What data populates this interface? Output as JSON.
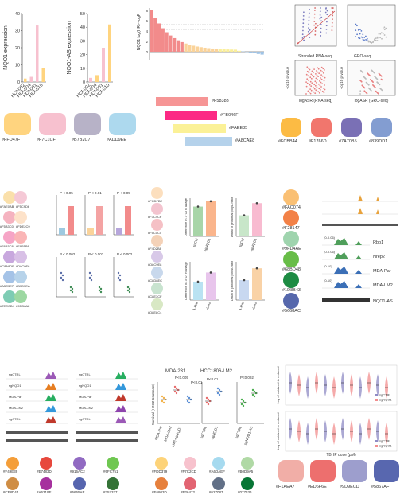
{
  "row1": {
    "chart_nqo1": {
      "type": "bar",
      "ylabel": "NQO1 expression",
      "categories": [
        "HCI-002",
        "HCI-004",
        "HCI-001",
        "HCI-010"
      ],
      "values": [
        2,
        3,
        33,
        8
      ],
      "ylim": [
        0,
        40
      ],
      "ticks": [
        "0",
        "10",
        "20",
        "30",
        "40"
      ],
      "colors": [
        "#FFD47F",
        "#F7C1CF",
        "#F7C1CF",
        "#FFD47F"
      ]
    },
    "chart_nqo1as": {
      "type": "bar",
      "ylabel": "NQO1-AS expression",
      "categories": [
        "HCI-002",
        "HCI-004",
        "HCI-001",
        "HCI-010"
      ],
      "values": [
        3,
        5,
        25,
        42
      ],
      "ylim": [
        0,
        50
      ],
      "ticks": [
        "0",
        "10",
        "20",
        "30",
        "40",
        "50"
      ],
      "colors": [
        "#F7C1CF",
        "#FFD47F",
        "#F7C1CF",
        "#FFD47F"
      ]
    },
    "chart_waterfall": {
      "type": "bar",
      "ylabel": "NQO1 log(HR)·-logP",
      "ticks": [
        "0",
        "2",
        "4",
        "6",
        "8"
      ]
    },
    "swatches_left": [
      {
        "hex": "#FFD47F",
        "label": "#FFD47F"
      },
      {
        "hex": "#F7C1CF",
        "label": "#F7C1CF"
      },
      {
        "hex": "#B7B2C7",
        "label": "#B7B2C7"
      },
      {
        "hex": "#ADD9EE",
        "label": "#ADD9EE"
      }
    ],
    "stripes": [
      {
        "hex": "#F58383",
        "label": "#F58383"
      },
      {
        "hex": "#FB046F",
        "label": "#FB046F"
      },
      {
        "hex": "#FAEE85",
        "label": "#FAEE85"
      },
      {
        "hex": "#A8CAE8",
        "label": "#A8CAE8"
      }
    ],
    "scatter": {
      "stranded_label": "Stranded RNA-seq",
      "gro_label": "GRO-seq",
      "xlabel_left": "logASR (RNA-seq)",
      "xlabel_right": "logASR (GRO-seq)",
      "ylabel": "-log10 p-value"
    },
    "swatches_right": [
      {
        "hex": "#FCBB44",
        "label": "#FCBB44"
      },
      {
        "hex": "#F1766D",
        "label": "#F1766D"
      },
      {
        "hex": "#7A70B5",
        "label": "#7A70B5"
      },
      {
        "hex": "#839DD1",
        "label": "#839DD1"
      }
    ]
  },
  "row2": {
    "left_pairs": [
      {
        "a": "#FAE0AB",
        "b": "#F5C9D6",
        "la": "#FAE0AB",
        "lb": "#F5C9D6"
      },
      {
        "a": "#F5B3C0",
        "b": "#FDE2C9",
        "la": "#F5B3C0",
        "lb": "#FDE2C9"
      },
      {
        "a": "#F6A5C6",
        "b": "#FAB5B6",
        "la": "#F6A5C6",
        "lb": "#FAB5B6"
      },
      {
        "a": "#C8A8DE",
        "b": "#D8C0E6",
        "la": "#C8A8DE",
        "lb": "#D8C0E6"
      },
      {
        "a": "#A5C3E7",
        "b": "#B7D3EA",
        "la": "#A5C3E7",
        "lb": "#B7D3EA"
      },
      {
        "a": "#7ECCB4",
        "b": "#9DD8A2",
        "la": "#7ECCB4",
        "lb": "#9DD8A2"
      }
    ],
    "pvals": [
      "P < 0.05",
      "P < 0.01",
      "P < 0.05",
      "P < 0.002"
    ],
    "mid_dots": [
      "#FCDFBE",
      "#F3C4CF",
      "#F5C0C5",
      "#F4D2B8",
      "#D8C9E8",
      "#C8D8EC",
      "#C8E3CF",
      "#D8E8C4"
    ],
    "mid_dot_labels": [
      "#FCDFBE",
      "#F3C4CF",
      "#F5C0C5",
      "#F4D2B8",
      "#D8C9E8",
      "#C8D8EC",
      "#C8E3CF",
      "#D8E8C4"
    ],
    "mini": [
      {
        "ylabel": "Difference in 3' UTR usage",
        "cats": [
          "sgCtrl",
          "sgNQO1"
        ],
        "vals": [
          0.78,
          0.92
        ],
        "colors": [
          "#A8D5A8",
          "#FAB58C"
        ]
      },
      {
        "ylabel": "Distal to proximal polyA ratio",
        "cats": [
          "sgCtrl",
          "sgNQO1"
        ],
        "vals": [
          0.55,
          0.87
        ],
        "colors": [
          "#C8E6C9",
          "#F8BBD0"
        ]
      },
      {
        "ylabel": "Difference in 3' UTR usage",
        "cats": [
          "MDA-Par",
          "MDA-LM2"
        ],
        "vals": [
          0.48,
          0.72
        ],
        "colors": [
          "#B9E2F2",
          "#E8C5EC"
        ]
      },
      {
        "ylabel": "Distal to proximal polyA ratio",
        "cats": [
          "MDA-Par",
          "MDA-LM2"
        ],
        "vals": [
          0.52,
          0.83
        ],
        "colors": [
          "#C8D8F0",
          "#F9D2A6"
        ]
      }
    ],
    "right_dots": [
      {
        "hex": "#FAC074",
        "label": "#FAC074"
      },
      {
        "hex": "#F28147",
        "label": "#F28147"
      },
      {
        "hex": "#9FD4AE",
        "label": "#9FD4AE"
      },
      {
        "hex": "#68BD48",
        "label": "#68BD48"
      },
      {
        "hex": "#1D8B43",
        "label": "#1D8B43"
      },
      {
        "hex": "#5668AC",
        "label": "#5668AC"
      }
    ],
    "tracks": {
      "labels": [
        "Rbp1",
        "Nrep2",
        "MDA-Par",
        "MDA-LM2"
      ],
      "gene": "NQO1-AS",
      "ranges": [
        "(0-0.06)",
        "(0-0.06)",
        "(0-10)",
        "(0-10)"
      ]
    }
  },
  "row3": {
    "track_labels": [
      "sgCTRL",
      "sgNQO1",
      "MDA-Par",
      "MDA-LM2"
    ],
    "dots_left": [
      {
        "hex": "#F49E39",
        "label": "#F49E39"
      },
      {
        "hex": "#E7483D",
        "label": "#E7483D"
      },
      {
        "hex": "#916AC2",
        "label": "#916AC2"
      },
      {
        "hex": "#6FC751",
        "label": "#6FC751"
      },
      {
        "hex": "#CF8D44",
        "label": "#CF8D44"
      },
      {
        "hex": "#A6319E",
        "label": "#A6319E"
      },
      {
        "hex": "#5665AE",
        "label": "#5665AE"
      },
      {
        "hex": "#357337",
        "label": "#357337"
      }
    ],
    "survival": {
      "title": "MDA-231",
      "title2": "HCC1806-LM2",
      "pvals": [
        "P<0.005",
        "P<0.01",
        "P<0.01",
        "P<0.002"
      ],
      "ylabel": "Survival (H2O2 treatment)",
      "cats": [
        "MDA-Par",
        "MDA-LM2",
        "LM2-sgNQO1",
        "sgCTRL",
        "sgNQO1",
        "sgCTRL",
        "sgNQO1-AS"
      ]
    },
    "dots_mid": [
      {
        "hex": "#FDD379",
        "label": "#FDD379"
      },
      {
        "hex": "#F7C2CD",
        "label": "#F7C2CD"
      },
      {
        "hex": "#A6DAEF",
        "label": "#A6DAEF"
      },
      {
        "hex": "#B0D9A5",
        "label": "#B0D9A5"
      },
      {
        "hex": "#E6803D",
        "label": "#E6803D"
      },
      {
        "hex": "#E26472",
        "label": "#E26472"
      },
      {
        "hex": "#627087",
        "label": "#627087"
      },
      {
        "hex": "#077535",
        "label": "#077535"
      }
    ],
    "violin": {
      "ylabel": "Log of oxidized to reduced",
      "xlabel": "TBHP dose (µM)",
      "legend": [
        "sgCTRL",
        "sgNQO1"
      ],
      "colors": [
        "#8F8BC4",
        "#F28E8E"
      ]
    },
    "swatches": [
      {
        "hex": "#F1AEA7",
        "label": "#F1AEA7"
      },
      {
        "hex": "#ED6F6E",
        "label": "#ED6F6E"
      },
      {
        "hex": "#9D9ECD",
        "label": "#9D9ECD"
      },
      {
        "hex": "#5867AF",
        "label": "#5867AF"
      }
    ]
  }
}
